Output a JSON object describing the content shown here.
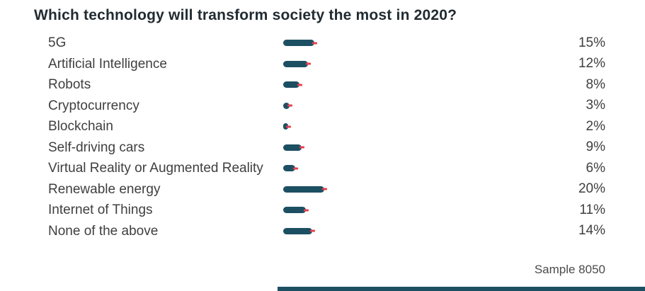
{
  "page": {
    "title": "Which technology will transform society the most in 2020?",
    "sample_note": "Sample 8050"
  },
  "colors": {
    "bar_fill": "#1d4f63",
    "bar_end_marker": "#e8404d",
    "title_text": "#212b32",
    "label_text": "#3f3f3f",
    "background": "#ffffff"
  },
  "chart_data": {
    "type": "bar",
    "orientation": "horizontal",
    "title": "Which technology will transform society the most in 2020?",
    "categories": [
      "5G",
      "Artificial Intelligence",
      "Robots",
      "Cryptocurrency",
      "Blockchain",
      "Self-driving cars",
      "Virtual Reality or Augmented Reality",
      "Renewable energy",
      "Internet of Things",
      "None of the above"
    ],
    "values": [
      15,
      12,
      8,
      3,
      2,
      9,
      6,
      20,
      11,
      14
    ],
    "value_labels": [
      "15%",
      "12%",
      "8%",
      "3%",
      "2%",
      "9%",
      "6%",
      "20%",
      "11%",
      "14%"
    ],
    "unit": "%",
    "xlim": [
      0,
      100
    ],
    "grid": false,
    "legend": false,
    "bar_end_marker": "red-dash",
    "annotation": "Sample 8050"
  }
}
